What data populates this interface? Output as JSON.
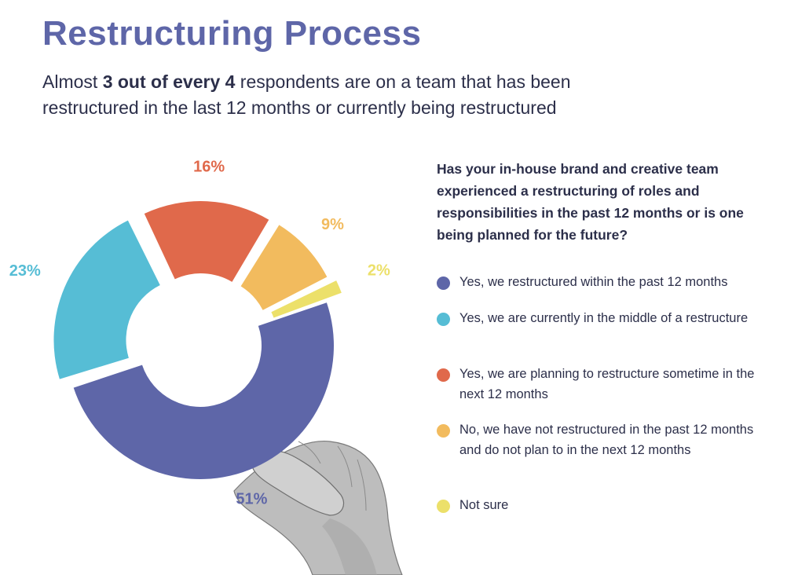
{
  "header": {
    "title": "Restructuring Process",
    "subtitle_pre": "Almost ",
    "subtitle_bold": "3 out of every 4",
    "subtitle_post": " respondents are on a team that has been restructured in the last 12 months or currently being restructured"
  },
  "question": "Has your in-house brand and creative team experienced a restructuring of roles and responsibilities in the past 12 months or is one being planned for the future?",
  "colors": {
    "primary": "#5e66a8",
    "cyan": "#56bdd5",
    "orange": "#e0694b",
    "gold": "#f2bb5e",
    "yellow": "#ece06a",
    "text": "#2c2f4a"
  },
  "chart_data": {
    "type": "pie",
    "subtype": "donut",
    "series": [
      {
        "name": "Yes, we restructured within the past 12 months",
        "value": 51,
        "label": "51%",
        "color": "#5e66a8"
      },
      {
        "name": "Yes, we are currently in the middle of a restructure",
        "value": 23,
        "label": "23%",
        "color": "#56bdd5"
      },
      {
        "name": "Yes, we are planning to restructure sometime in the next 12 months",
        "value": 16,
        "label": "16%",
        "color": "#e0694b"
      },
      {
        "name": "No, we have not restructured in the past 12 months and do not plan to in the next 12 months",
        "value": 9,
        "label": "9%",
        "color": "#f2bb5e"
      },
      {
        "name": "Not sure",
        "value": 2,
        "label": "2%",
        "color": "#ece06a"
      }
    ]
  },
  "legend": [
    {
      "label": "Yes, we restructured within the past 12 months",
      "color": "#5e66a8"
    },
    {
      "label": "Yes, we are currently in the middle of a restructure",
      "color": "#56bdd5"
    },
    {
      "label": "Yes, we are planning to restructure sometime in the next 12 months",
      "color": "#e0694b"
    },
    {
      "label": "No, we have not restructured in the past 12 months and do not plan to in the next 12 months",
      "color": "#f2bb5e"
    },
    {
      "label": "Not sure",
      "color": "#ece06a"
    }
  ]
}
